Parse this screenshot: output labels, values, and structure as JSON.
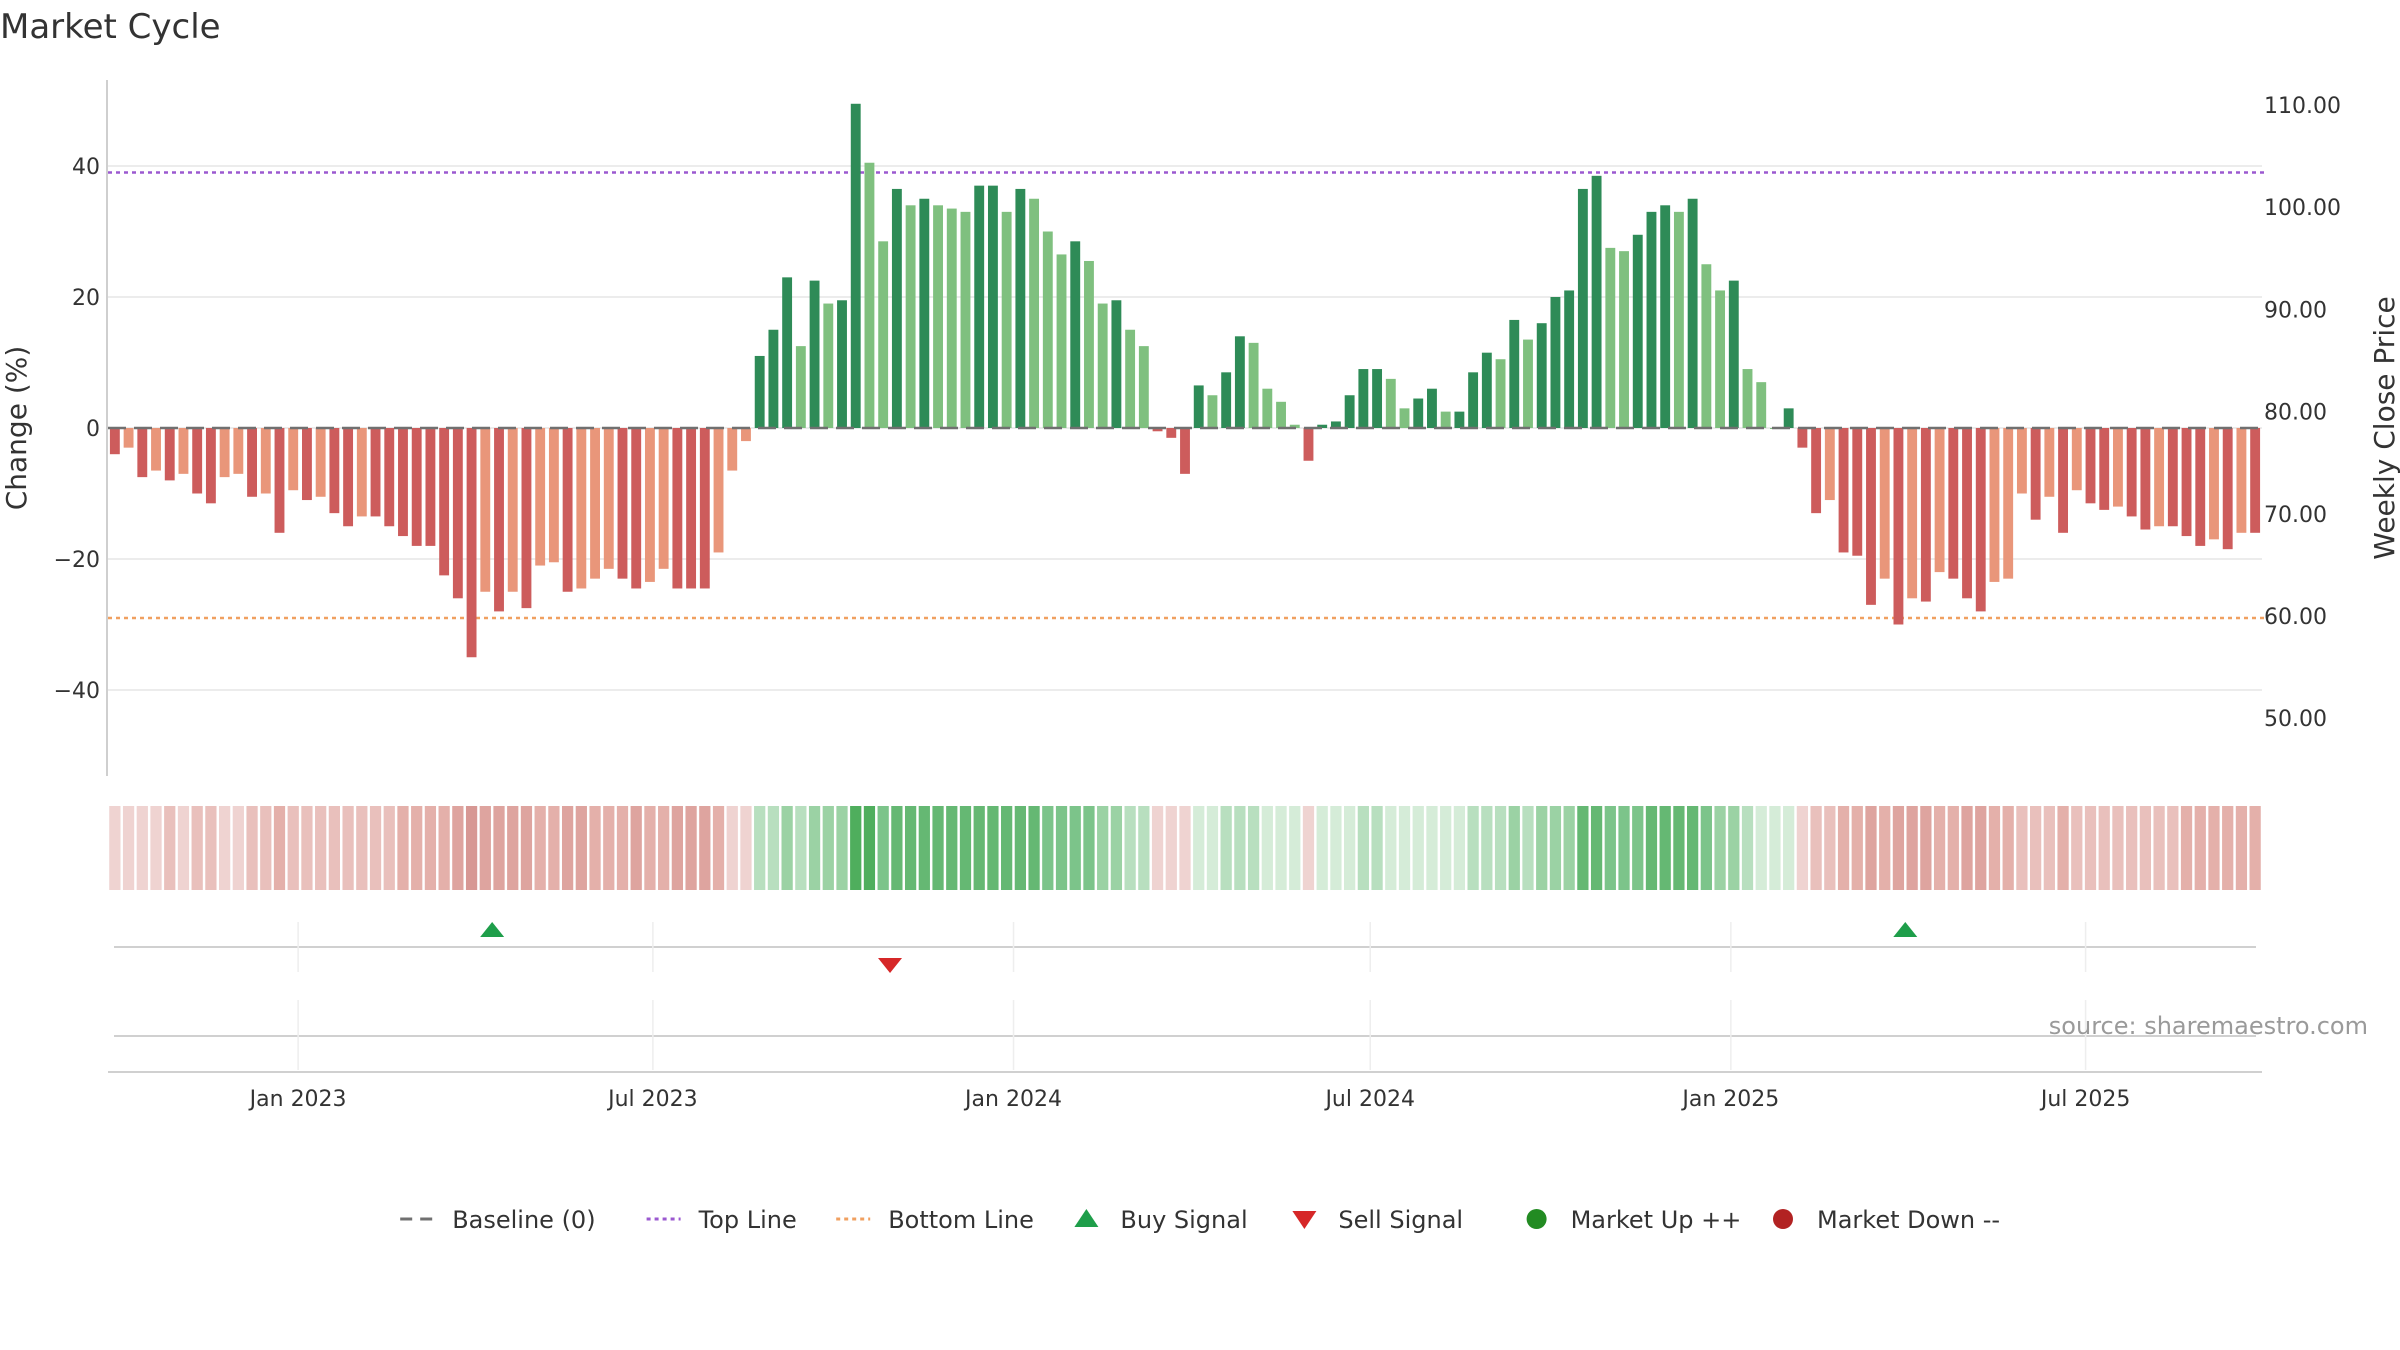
{
  "chart_data": {
    "type": "bar",
    "title": "Market Cycle",
    "ylabel": "Change (%)",
    "y2label": "Weekly Close Price",
    "ylim": [
      -53,
      53
    ],
    "y_ticks": [
      {
        "value": 40,
        "label": "40"
      },
      {
        "value": 20,
        "label": "20"
      },
      {
        "value": 0,
        "label": "0"
      },
      {
        "value": -20,
        "label": "−20"
      },
      {
        "value": -40,
        "label": "−40"
      }
    ],
    "y2_ticks": [
      "110.00",
      "100.00",
      "90.00",
      "80.00",
      "70.00",
      "60.00",
      "50.00"
    ],
    "x_range": [
      "2022-09-26",
      "2025-09-29"
    ],
    "x_ticks": [
      {
        "date": "2023-01-01",
        "label": "Jan 2023"
      },
      {
        "date": "2023-07-01",
        "label": "Jul 2023"
      },
      {
        "date": "2024-01-01",
        "label": "Jan 2024"
      },
      {
        "date": "2024-07-01",
        "label": "Jul 2024"
      },
      {
        "date": "2025-01-01",
        "label": "Jan 2025"
      },
      {
        "date": "2025-07-01",
        "label": "Jul 2025"
      }
    ],
    "top_line": 39,
    "bottom_line": -29,
    "first_week": "2022-09-26",
    "weekly_change": [
      -4,
      -3,
      -7.5,
      -6.5,
      -8,
      -7,
      -10,
      -11.5,
      -7.5,
      -7,
      -10.5,
      -10,
      -16,
      -9.5,
      -11,
      -10.5,
      -13,
      -15,
      -13.5,
      -13.5,
      -15,
      -16.5,
      -18,
      -18,
      -22.5,
      -26,
      -35,
      -25,
      -28,
      -25,
      -27.5,
      -21,
      -20.5,
      -25,
      -24.5,
      -23,
      -21.5,
      -23,
      -24.5,
      -23.5,
      -21.5,
      -24.5,
      -24.5,
      -24.5,
      -19,
      -6.5,
      -2,
      11,
      15,
      23,
      12.5,
      22.5,
      19,
      19.5,
      49.5,
      40.5,
      28.5,
      36.5,
      34,
      35,
      34,
      33.5,
      33,
      37,
      37,
      33,
      36.5,
      35,
      30,
      26.5,
      28.5,
      25.5,
      19,
      19.5,
      15,
      12.5,
      -0.5,
      -1.5,
      -7,
      6.5,
      5,
      8.5,
      14,
      13,
      6,
      4,
      0.5,
      -5,
      0.5,
      1,
      5,
      9,
      9,
      7.5,
      3,
      4.5,
      6,
      2.5,
      2.5,
      8.5,
      11.5,
      10.5,
      16.5,
      13.5,
      16,
      20,
      21,
      36.5,
      38.5,
      27.5,
      27,
      29.5,
      33,
      34,
      33,
      35,
      25,
      21,
      22.5,
      9,
      7,
      0,
      3,
      -3,
      -13,
      -11,
      -19,
      -19.5,
      -27,
      -23,
      -30,
      -26,
      -26.5,
      -22,
      -23,
      -26,
      -28,
      -23.5,
      -23,
      -10,
      -14,
      -10.5,
      -16,
      -9.5,
      -11.5,
      -12.5,
      -12,
      -13.5,
      -15.5,
      -15,
      -15,
      -16.5,
      -18,
      -17,
      -18.5,
      -16,
      -16
    ],
    "weekly_close": [],
    "regime_shading": {
      "negative_colors": [
        "#efd3d1",
        "#e9c0bc",
        "#e4b0aa",
        "#dea49f",
        "#d79894",
        "#d08c88"
      ],
      "positive_colors": [
        "#d5ecd8",
        "#b8dfbf",
        "#9bd2a4",
        "#7cc48a",
        "#65b873",
        "#4fae5d"
      ]
    },
    "buy_signals": [
      {
        "date": "2023-04-10",
        "label": "Buy Signal"
      },
      {
        "date": "2025-03-31",
        "label": "Buy Signal"
      }
    ],
    "sell_signals": [
      {
        "date": "2023-10-30",
        "label": "Sell Signal"
      }
    ],
    "legend": [
      {
        "name": "Baseline (0)",
        "marker": "dashed-line",
        "color": "#707070"
      },
      {
        "name": "Top Line",
        "marker": "dotted-line",
        "color": "#9b59d0"
      },
      {
        "name": "Bottom Line",
        "marker": "dotted-line",
        "color": "#f0a060"
      },
      {
        "name": "Buy Signal",
        "marker": "triangle-up",
        "color": "#1e9e4a"
      },
      {
        "name": "Sell Signal",
        "marker": "triangle-down",
        "color": "#d62728"
      },
      {
        "name": "Market Up ++",
        "marker": "circle",
        "color": "#228b22"
      },
      {
        "name": "Market Down --",
        "marker": "circle",
        "color": "#b22222"
      }
    ],
    "legend_position": "bottom-center",
    "source": "source: sharemaestro.com",
    "colors": {
      "pos_strong": "#2e8b57",
      "pos_light": "#7fc07f",
      "neg_strong": "#cd5c5c",
      "neg_light": "#e9967a",
      "gridline": "#e6e6e6"
    }
  }
}
